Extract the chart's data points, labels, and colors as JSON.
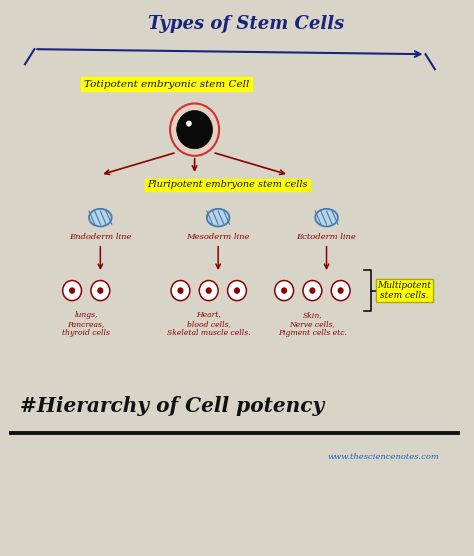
{
  "bg_color": "#d8d4c8",
  "title": "Types of Stem Cells",
  "title_color": "#1a237e",
  "title_fontsize": 13,
  "arrow_color": "#1a237e",
  "totipotent_label": "Totipotent embryonic stem Cell",
  "pluripotent_label": "Pluripotent embryone stem cells",
  "multipotent_label": "Multipotent\nstem cells.",
  "endoderm_label": "Endoderm line",
  "mesoderm_label": "Mesoderm line",
  "ectoderm_label": "Ectoderm line",
  "lung_label": "lungs,\nPancreas,\nthyroid cells",
  "heart_label": "Heart,\nblood cells,\nSkeletal muscle cells.",
  "skin_label": "Skin,\nNerve cells,\nPigment cells etc.",
  "hashtag_label": "#Hierarchy of Cell potency",
  "website_label": "www.thesciencenotes.com",
  "highlight_yellow": "#ffff00",
  "red_color": "#8b0000",
  "blue_dark": "#1a237e",
  "black_color": "#111111",
  "cell_body_color": "#e8d0c0",
  "cell_outline_color": "#cc3333",
  "nucleus_color": "#0a0a0a",
  "germ_cell_color": "#b8d4e8",
  "germ_cell_outline": "#4a7aaa"
}
